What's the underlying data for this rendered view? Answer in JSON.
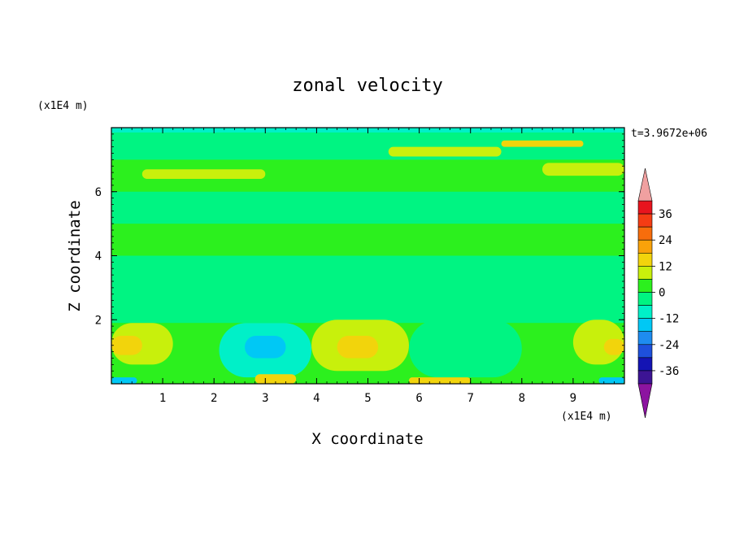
{
  "chart_data": {
    "type": "heatmap",
    "title": "zonal velocity",
    "xlabel": "X coordinate",
    "ylabel": "Z coordinate",
    "x_unit": "(x1E4 m)",
    "y_unit": "(x1E4 m)",
    "time_label": "t=3.9672e+06",
    "xlim": [
      0,
      10
    ],
    "ylim": [
      0,
      8
    ],
    "x_ticks": [
      "1",
      "2",
      "3",
      "4",
      "5",
      "6",
      "7",
      "8",
      "9"
    ],
    "x_tick_values": [
      1,
      2,
      3,
      4,
      5,
      6,
      7,
      8,
      9
    ],
    "y_ticks": [
      "2",
      "4",
      "6"
    ],
    "y_tick_values": [
      2,
      4,
      6
    ],
    "colorbar": {
      "labels": [
        "36",
        "24",
        "12",
        "0",
        "-12",
        "-24",
        "-36"
      ],
      "label_values": [
        36,
        24,
        12,
        0,
        -12,
        -24,
        -36
      ],
      "range": [
        -42,
        42
      ],
      "levels": [
        {
          "lo": 36,
          "hi": 42,
          "color": "#e8141e"
        },
        {
          "lo": 30,
          "hi": 36,
          "color": "#f53c14"
        },
        {
          "lo": 24,
          "hi": 30,
          "color": "#f76d0c"
        },
        {
          "lo": 18,
          "hi": 24,
          "color": "#f9a20a"
        },
        {
          "lo": 12,
          "hi": 18,
          "color": "#f2d40c"
        },
        {
          "lo": 6,
          "hi": 12,
          "color": "#c8f00c"
        },
        {
          "lo": 0,
          "hi": 6,
          "color": "#2cf01e"
        },
        {
          "lo": -6,
          "hi": 0,
          "color": "#00f482"
        },
        {
          "lo": -12,
          "hi": -6,
          "color": "#00f0c8"
        },
        {
          "lo": -18,
          "hi": -12,
          "color": "#00c8f5"
        },
        {
          "lo": -24,
          "hi": -18,
          "color": "#1e8cf0"
        },
        {
          "lo": -30,
          "hi": -24,
          "color": "#1e50dc"
        },
        {
          "lo": -36,
          "hi": -30,
          "color": "#1414b4"
        },
        {
          "lo": -42,
          "hi": -36,
          "color": "#3c1494"
        }
      ],
      "over_color": "#f0a0a0",
      "under_color": "#8c14a0"
    },
    "field_regions": [
      {
        "x": [
          0,
          10
        ],
        "z": [
          0,
          8
        ],
        "value": 2
      },
      {
        "x": [
          0,
          10
        ],
        "z": [
          1.9,
          4.0
        ],
        "value": -3
      },
      {
        "x": [
          0,
          10
        ],
        "z": [
          5.0,
          6.0
        ],
        "value": -3
      },
      {
        "x": [
          0,
          10
        ],
        "z": [
          7.0,
          8.0
        ],
        "value": -3
      },
      {
        "x": [
          0,
          1.2
        ],
        "z": [
          0.6,
          1.9
        ],
        "value": 8
      },
      {
        "x": [
          0,
          0.6
        ],
        "z": [
          0.9,
          1.5
        ],
        "value": 14
      },
      {
        "x": [
          2.1,
          3.9
        ],
        "z": [
          0.2,
          1.9
        ],
        "value": -8
      },
      {
        "x": [
          2.6,
          3.4
        ],
        "z": [
          0.8,
          1.5
        ],
        "value": -14
      },
      {
        "x": [
          3.9,
          5.8
        ],
        "z": [
          0.4,
          2.0
        ],
        "value": 8
      },
      {
        "x": [
          4.4,
          5.2
        ],
        "z": [
          0.8,
          1.5
        ],
        "value": 14
      },
      {
        "x": [
          5.8,
          8.0
        ],
        "z": [
          0.2,
          2.0
        ],
        "value": -6
      },
      {
        "x": [
          9.0,
          10.0
        ],
        "z": [
          0.6,
          2.0
        ],
        "value": 8
      },
      {
        "x": [
          9.6,
          10.0
        ],
        "z": [
          0.9,
          1.4
        ],
        "value": 14
      },
      {
        "x": [
          5.8,
          7.0
        ],
        "z": [
          0.0,
          0.2
        ],
        "value": 14
      },
      {
        "x": [
          2.8,
          3.6
        ],
        "z": [
          0.0,
          0.3
        ],
        "value": 14
      },
      {
        "x": [
          0.0,
          0.5
        ],
        "z": [
          0.0,
          0.2
        ],
        "value": -16
      },
      {
        "x": [
          9.5,
          10.0
        ],
        "z": [
          0.0,
          0.2
        ],
        "value": -16
      },
      {
        "x": [
          0.6,
          3.0
        ],
        "z": [
          6.4,
          6.7
        ],
        "value": 8
      },
      {
        "x": [
          5.4,
          7.6
        ],
        "z": [
          7.1,
          7.4
        ],
        "value": 8
      },
      {
        "x": [
          7.6,
          9.2
        ],
        "z": [
          7.4,
          7.6
        ],
        "value": 14
      },
      {
        "x": [
          8.4,
          10.0
        ],
        "z": [
          6.5,
          6.9
        ],
        "value": 8
      },
      {
        "x": [
          0.0,
          10.0
        ],
        "z": [
          7.85,
          8.0
        ],
        "value": -10
      }
    ]
  }
}
